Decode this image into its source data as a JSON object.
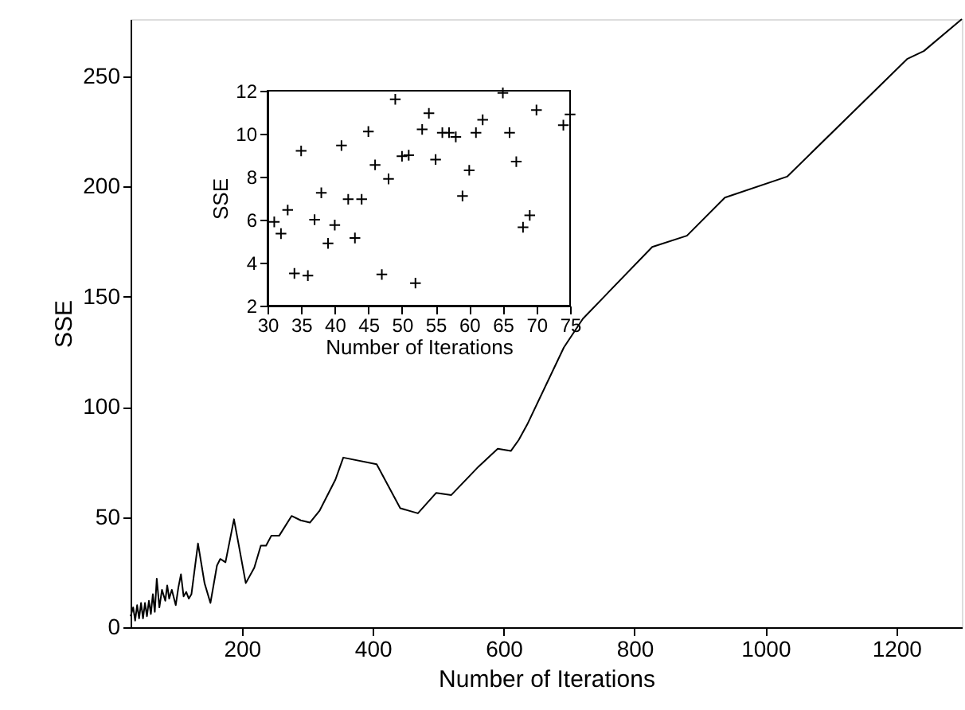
{
  "chart_data": [
    {
      "type": "line",
      "xlabel": "Number of Iterations",
      "ylabel": "SSE",
      "xlim": [
        30,
        1300
      ],
      "ylim": [
        0,
        276
      ],
      "xticks": [
        200,
        400,
        600,
        800,
        1000,
        1200
      ],
      "yticks": [
        0,
        50,
        100,
        150,
        200,
        250
      ],
      "grid": false,
      "marker": "none",
      "line_style": "solid",
      "series": [
        {
          "color": "#000000",
          "x": [
            30,
            34,
            37,
            40,
            43,
            46,
            49,
            52,
            55,
            58,
            61,
            64,
            67,
            70,
            74,
            78,
            83,
            86,
            89,
            93,
            99,
            103,
            107,
            111,
            115,
            119,
            123,
            133,
            143,
            152,
            162,
            167,
            175,
            188,
            206,
            219,
            229,
            237,
            245,
            257,
            276,
            290,
            304,
            319,
            343,
            355,
            406,
            442,
            469,
            497,
            520,
            562,
            591,
            611,
            623,
            636,
            692,
            721,
            827,
            880,
            938,
            1033,
            1217,
            1242,
            1300
          ],
          "values": [
            5,
            9,
            3,
            10,
            4,
            11,
            4,
            11,
            5,
            12,
            6,
            15,
            7,
            22,
            9,
            17,
            12,
            19,
            13,
            17,
            10,
            18,
            24,
            14,
            16,
            13,
            15,
            38,
            20,
            11,
            28,
            31,
            29.5,
            49,
            20,
            27,
            37,
            37,
            41.5,
            41.5,
            50.5,
            48.5,
            47.5,
            53,
            67,
            77,
            74,
            54,
            51.7,
            61,
            60,
            73,
            81,
            80,
            85,
            92,
            127,
            140,
            172.6,
            177.7,
            195,
            204.5,
            258,
            261.5,
            276
          ]
        }
      ]
    },
    {
      "type": "scatter",
      "xlabel": "Number of Iterations",
      "ylabel": "SSE",
      "xlim": [
        30,
        75
      ],
      "ylim": [
        2,
        12
      ],
      "xticks": [
        30,
        35,
        40,
        45,
        50,
        55,
        60,
        65,
        70,
        75
      ],
      "yticks": [
        2,
        4,
        6,
        8,
        10,
        12
      ],
      "grid": false,
      "marker": "cross",
      "series": [
        {
          "color": "#000000",
          "x": [
            31,
            32,
            33,
            34,
            35,
            36,
            37,
            38,
            39,
            40,
            41,
            42,
            43,
            44,
            45,
            46,
            47,
            48,
            49,
            50,
            51,
            52,
            53,
            54,
            55,
            56,
            57,
            58,
            59,
            60,
            61,
            62,
            65,
            66,
            67,
            68,
            69,
            70,
            74,
            75
          ],
          "values": [
            5.9,
            5.35,
            6.45,
            3.5,
            9.2,
            3.4,
            6.0,
            7.25,
            4.9,
            5.75,
            9.45,
            6.95,
            5.15,
            6.95,
            10.1,
            8.55,
            3.45,
            7.9,
            11.6,
            8.95,
            9.0,
            3.05,
            10.2,
            10.95,
            8.8,
            10.05,
            10.05,
            9.85,
            7.1,
            8.3,
            10.05,
            10.65,
            11.9,
            10.05,
            8.7,
            5.65,
            6.2,
            11.1,
            10.4,
            10.9
          ]
        }
      ]
    }
  ]
}
